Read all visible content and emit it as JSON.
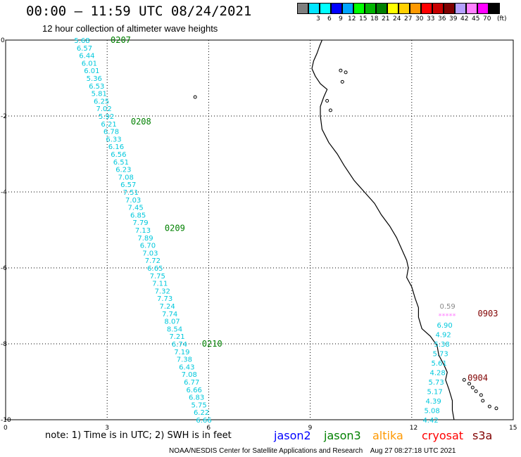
{
  "title": "00:00 — 11:59 UTC 08/24/2021",
  "subtitle": "12 hour collection of altimeter wave heights",
  "color_scale": {
    "unit_label": "(ft)",
    "steps": [
      {
        "label": "",
        "color": "#7f7f7f"
      },
      {
        "label": "3",
        "color": "#00e5ff"
      },
      {
        "label": "6",
        "color": "#00ffff"
      },
      {
        "label": "9",
        "color": "#0000ff"
      },
      {
        "label": "12",
        "color": "#00a5ff"
      },
      {
        "label": "15",
        "color": "#00ff00"
      },
      {
        "label": "18",
        "color": "#00b400"
      },
      {
        "label": "21",
        "color": "#008000"
      },
      {
        "label": "24",
        "color": "#ffff00"
      },
      {
        "label": "27",
        "color": "#ffd000"
      },
      {
        "label": "30",
        "color": "#ff9900"
      },
      {
        "label": "33",
        "color": "#ff0000"
      },
      {
        "label": "36",
        "color": "#c80000"
      },
      {
        "label": "39",
        "color": "#7f0000"
      },
      {
        "label": "42",
        "color": "#b4a0ff"
      },
      {
        "label": "45",
        "color": "#ff80ff"
      },
      {
        "label": "70",
        "color": "#ff00ff"
      },
      {
        "label": "",
        "color": "#000000"
      }
    ]
  },
  "axes": {
    "x_ticks": [
      "0",
      "3",
      "6",
      "9",
      "12",
      "15"
    ],
    "y_ticks": [
      "0",
      "-2",
      "-4",
      "-6",
      "-8",
      "-10"
    ]
  },
  "tracks": [
    {
      "satellite": "jason3",
      "color": "#00c8dc",
      "start_lon": 2.4,
      "start_lat": 0.0,
      "end_lon": 6.0,
      "end_lat": -10.0,
      "values": [
        "5.68",
        "6.57",
        "6.44",
        "6.01",
        "6.01",
        "5.36",
        "6.53",
        "5.81",
        "6.25",
        "7.02",
        "5.92",
        "6.21",
        "6.78",
        "6.33",
        "6.16",
        "6.56",
        "6.51",
        "6.23",
        "7.08",
        "6.57",
        "7.51",
        "7.03",
        "7.45",
        "6.85",
        "7.79",
        "7.13",
        "7.89",
        "6.70",
        "7.03",
        "7.72",
        "6.65",
        "7.75",
        "7.11",
        "7.32",
        "7.73",
        "7.24",
        "7.74",
        "8.07",
        "8.54",
        "7.21",
        "6.74",
        "7.19",
        "7.38",
        "6.43",
        "7.08",
        "6.77",
        "6.66",
        "6.83",
        "5.75",
        "6.22",
        "6.66"
      ]
    },
    {
      "satellite": "cryosat",
      "color": "#00c8dc",
      "start_lon": 13.2,
      "start_lat": -7.0,
      "end_lon": 12.7,
      "end_lat": -10.0,
      "values": [
        "0.59",
        "*****",
        "6.90",
        "4.92",
        "5.38",
        "5.73",
        "5.61",
        "4.28",
        "5.73",
        "5.17",
        "4.39",
        "5.08",
        "4.42"
      ]
    }
  ],
  "passes": [
    {
      "label": "0207",
      "sat": "jason3",
      "color": "#008000",
      "lon": 3.1,
      "lat": 0.0
    },
    {
      "label": "0208",
      "sat": "jason3",
      "color": "#008000",
      "lon": 3.7,
      "lat": -2.15
    },
    {
      "label": "0209",
      "sat": "jason3",
      "color": "#008000",
      "lon": 4.7,
      "lat": -4.95
    },
    {
      "label": "0210",
      "sat": "jason3",
      "color": "#008000",
      "lon": 5.8,
      "lat": -8.0
    },
    {
      "label": "0903",
      "sat": "cryosat",
      "color": "#800000",
      "lon": 13.95,
      "lat": -7.2
    },
    {
      "label": "0904",
      "sat": "cryosat",
      "color": "#800000",
      "lon": 13.65,
      "lat": -8.9
    }
  ],
  "satellites": [
    {
      "name": "jason2",
      "color": "#0000ff"
    },
    {
      "name": "jason3",
      "color": "#008000"
    },
    {
      "name": "altika",
      "color": "#ff9900"
    },
    {
      "name": "cryosat",
      "color": "#ff0000"
    },
    {
      "name": "s3a",
      "color": "#800000"
    }
  ],
  "note": "note: 1) Time is in UTC; 2) SWH is in feet",
  "credit": "NOAA/NESDIS Center for Satellite Applications and Research    Aug 27 08:27:18 UTC 2021",
  "coastline": [
    [
      9.35,
      0.0
    ],
    [
      9.28,
      0.15
    ],
    [
      9.2,
      0.35
    ],
    [
      9.1,
      0.55
    ],
    [
      9.05,
      0.75
    ],
    [
      9.15,
      0.95
    ],
    [
      9.3,
      1.15
    ],
    [
      9.5,
      1.3
    ],
    [
      9.4,
      1.5
    ],
    [
      9.3,
      1.75
    ],
    [
      9.3,
      2.0
    ],
    [
      9.35,
      2.35
    ],
    [
      9.55,
      2.7
    ],
    [
      9.8,
      3.0
    ],
    [
      10.0,
      3.3
    ],
    [
      10.3,
      3.7
    ],
    [
      10.6,
      4.0
    ],
    [
      10.9,
      4.3
    ],
    [
      11.1,
      4.6
    ],
    [
      11.35,
      4.9
    ],
    [
      11.55,
      5.2
    ],
    [
      11.7,
      5.5
    ],
    [
      11.85,
      5.8
    ],
    [
      11.9,
      6.0
    ],
    [
      11.85,
      6.25
    ],
    [
      12.0,
      6.5
    ],
    [
      12.1,
      6.8
    ],
    [
      12.2,
      7.05
    ],
    [
      12.2,
      7.3
    ],
    [
      12.3,
      7.6
    ],
    [
      12.55,
      7.8
    ],
    [
      12.75,
      8.05
    ],
    [
      12.8,
      8.3
    ],
    [
      12.95,
      8.55
    ],
    [
      13.05,
      8.75
    ],
    [
      13.0,
      8.95
    ],
    [
      13.1,
      9.2
    ],
    [
      13.2,
      9.5
    ],
    [
      13.2,
      9.75
    ],
    [
      13.25,
      10.0
    ]
  ],
  "island_points": [
    [
      9.9,
      0.8
    ],
    [
      10.05,
      0.85
    ],
    [
      9.95,
      1.1
    ],
    [
      5.6,
      1.5
    ],
    [
      9.5,
      1.6
    ],
    [
      9.6,
      1.85
    ],
    [
      13.55,
      8.95
    ],
    [
      13.7,
      9.05
    ],
    [
      13.8,
      9.15
    ],
    [
      13.9,
      9.25
    ],
    [
      14.05,
      9.35
    ],
    [
      14.1,
      9.5
    ],
    [
      14.3,
      9.65
    ],
    [
      14.5,
      9.7
    ]
  ]
}
